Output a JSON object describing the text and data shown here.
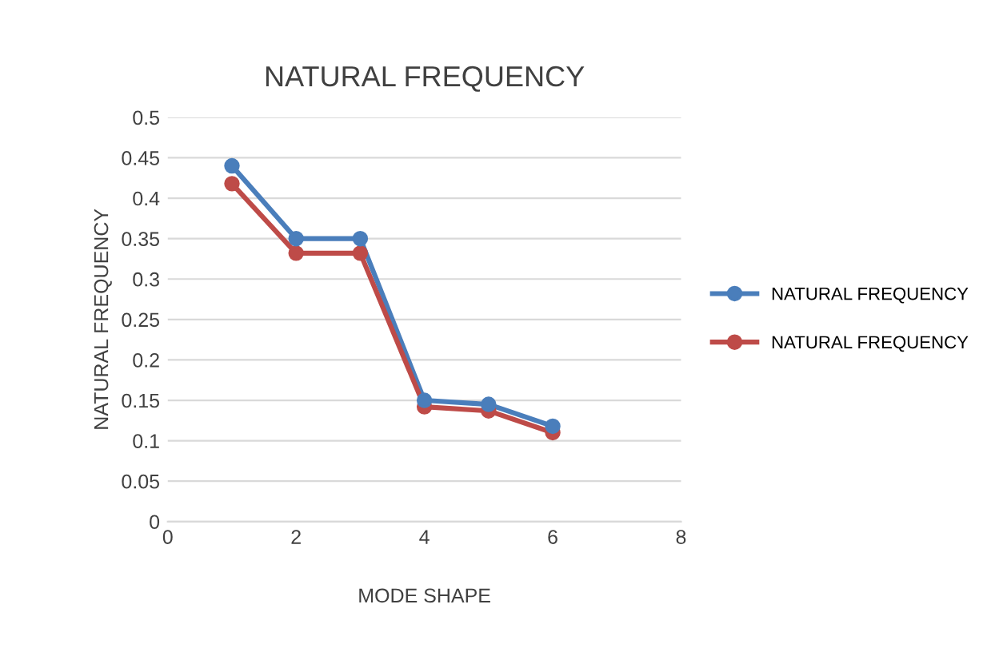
{
  "chart_data": {
    "type": "line",
    "title": "NATURAL FREQUENCY",
    "xlabel": "MODE SHAPE",
    "ylabel": "NATURAL FREQUENCY",
    "x": [
      1,
      2,
      3,
      4,
      5,
      6
    ],
    "series": [
      {
        "name": "NATURAL FREQUENCY",
        "color": "#4a7ebb",
        "values": [
          0.44,
          0.35,
          0.35,
          0.15,
          0.145,
          0.118
        ]
      },
      {
        "name": "NATURAL FREQUENCY",
        "color": "#be4b48",
        "values": [
          0.418,
          0.332,
          0.332,
          0.142,
          0.137,
          0.11
        ]
      }
    ],
    "xlim": [
      0,
      8
    ],
    "xticks": [
      0,
      2,
      4,
      6,
      8
    ],
    "ylim": [
      0,
      0.5
    ],
    "yticks": [
      0,
      0.05,
      0.1,
      0.15,
      0.2,
      0.25,
      0.3,
      0.35,
      0.4,
      0.45,
      0.5
    ],
    "grid": "y",
    "legend": "right",
    "marker": "circle",
    "line_style": "solid"
  }
}
